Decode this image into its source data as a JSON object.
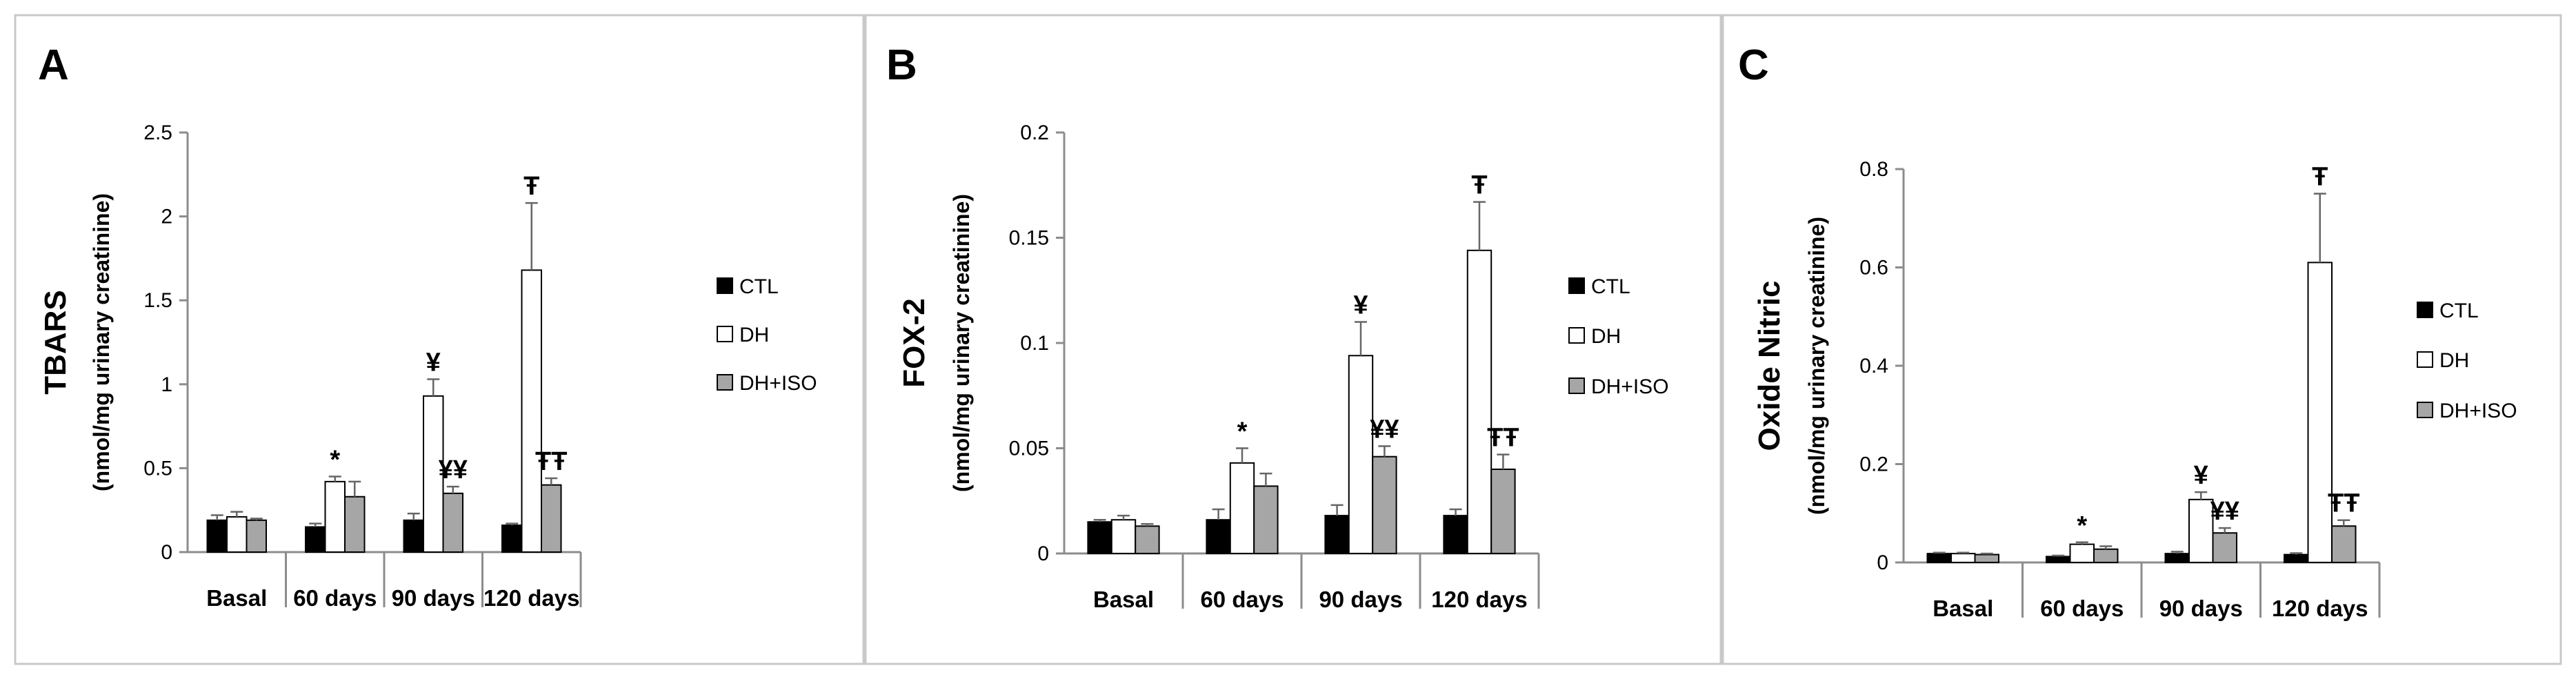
{
  "chart_data": [
    {
      "type": "bar",
      "panel": "A",
      "ylabel": "TBARS",
      "ylabel_units": "(nmol/mg urinary creatinine)",
      "ylim": [
        0,
        2.5
      ],
      "yticks": [
        "0",
        "0.5",
        "1",
        "1.5",
        "2",
        "2.5"
      ],
      "categories": [
        "Basal",
        "60 days",
        "90 days",
        "120 days"
      ],
      "series": [
        {
          "name": "CTL",
          "color": "#000000",
          "values": [
            0.19,
            0.15,
            0.19,
            0.16
          ],
          "errors": [
            0.03,
            0.02,
            0.04,
            0.01
          ],
          "annotations": [
            "",
            "",
            "",
            ""
          ]
        },
        {
          "name": "DH",
          "color": "#ffffff",
          "values": [
            0.21,
            0.42,
            0.93,
            1.68
          ],
          "errors": [
            0.03,
            0.03,
            0.1,
            0.4
          ],
          "annotations": [
            "",
            "*",
            "¥",
            "Ŧ"
          ]
        },
        {
          "name": "DH+ISO",
          "color": "#a6a6a6",
          "values": [
            0.19,
            0.33,
            0.35,
            0.4
          ],
          "errors": [
            0.01,
            0.09,
            0.04,
            0.04
          ],
          "annotations": [
            "",
            "",
            "¥¥",
            "ŦŦ"
          ]
        }
      ],
      "legend_position": "right"
    },
    {
      "type": "bar",
      "panel": "B",
      "ylabel": "FOX-2",
      "ylabel_units": "(nmol/mg urinary creatinine)",
      "ylim": [
        0,
        0.2
      ],
      "yticks": [
        "0",
        "0.05",
        "0.1",
        "0.15",
        "0.2"
      ],
      "categories": [
        "Basal",
        "60 days",
        "90 days",
        "120 days"
      ],
      "series": [
        {
          "name": "CTL",
          "color": "#000000",
          "values": [
            0.015,
            0.016,
            0.018,
            0.018
          ],
          "errors": [
            0.001,
            0.005,
            0.005,
            0.003
          ],
          "annotations": [
            "",
            "",
            "",
            ""
          ]
        },
        {
          "name": "DH",
          "color": "#ffffff",
          "values": [
            0.016,
            0.043,
            0.094,
            0.144
          ],
          "errors": [
            0.002,
            0.007,
            0.016,
            0.023
          ],
          "annotations": [
            "",
            "*",
            "¥",
            "Ŧ"
          ]
        },
        {
          "name": "DH+ISO",
          "color": "#a6a6a6",
          "values": [
            0.013,
            0.032,
            0.046,
            0.04
          ],
          "errors": [
            0.001,
            0.006,
            0.005,
            0.007
          ],
          "annotations": [
            "",
            "",
            "¥¥",
            "ŦŦ"
          ]
        }
      ],
      "legend_position": "right"
    },
    {
      "type": "bar",
      "panel": "C",
      "ylabel": "Oxide Nitric",
      "ylabel_units": "(nmol/mg urinary creatinine)",
      "ylim": [
        0,
        0.8
      ],
      "yticks": [
        "0",
        "0.2",
        "0.4",
        "0.6",
        "0.8"
      ],
      "categories": [
        "Basal",
        "60 days",
        "90 days",
        "120 days"
      ],
      "series": [
        {
          "name": "CTL",
          "color": "#000000",
          "values": [
            0.018,
            0.012,
            0.018,
            0.016
          ],
          "errors": [
            0.002,
            0.002,
            0.004,
            0.003
          ],
          "annotations": [
            "",
            "",
            "",
            ""
          ]
        },
        {
          "name": "DH",
          "color": "#ffffff",
          "values": [
            0.018,
            0.037,
            0.128,
            0.61
          ],
          "errors": [
            0.002,
            0.004,
            0.015,
            0.14
          ],
          "annotations": [
            "",
            "*",
            "¥",
            "Ŧ"
          ]
        },
        {
          "name": "DH+ISO",
          "color": "#a6a6a6",
          "values": [
            0.016,
            0.027,
            0.06,
            0.074
          ],
          "errors": [
            0.002,
            0.006,
            0.01,
            0.012
          ],
          "annotations": [
            "",
            "",
            "¥¥",
            "ŦŦ"
          ]
        }
      ],
      "legend_position": "right"
    }
  ]
}
